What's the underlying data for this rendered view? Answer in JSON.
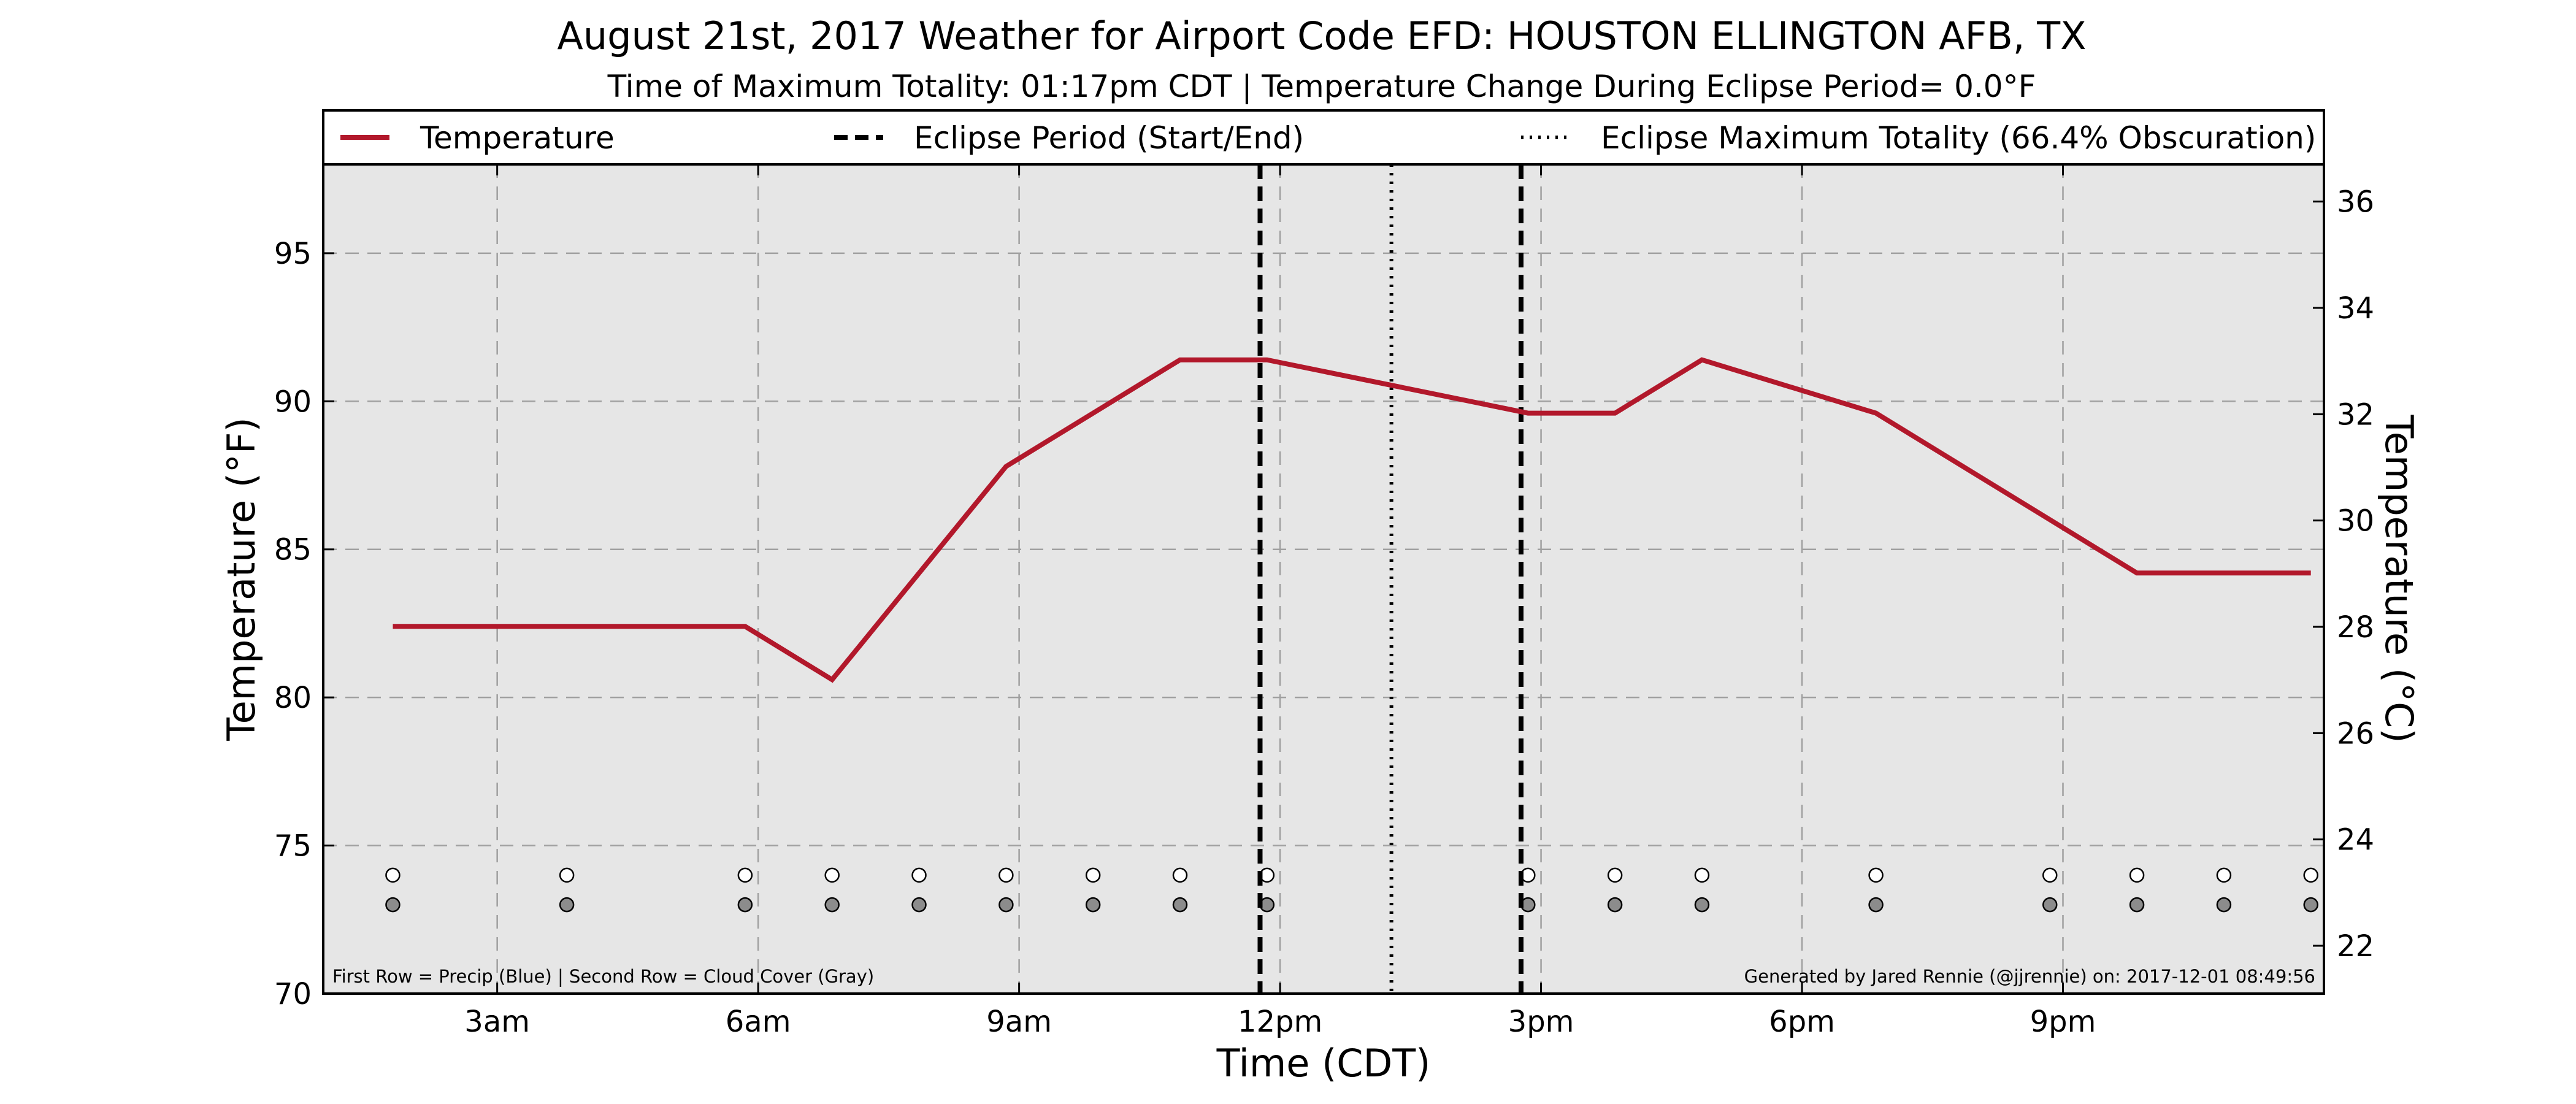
{
  "chart_data": {
    "type": "line",
    "title": "August 21st, 2017 Weather for Airport Code EFD: HOUSTON ELLINGTON AFB, TX",
    "subtitle": "Time of Maximum Totality: 01:17pm CDT | Temperature Change During Eclipse Period= 0.0°F",
    "xlabel": "Time (CDT)",
    "ylabel": "Temperature (°F)",
    "y2label": "Temperature (°C)",
    "xlim_hours": [
      1,
      24
    ],
    "ylim": [
      70,
      98
    ],
    "y2lim": [
      21.1,
      36.7
    ],
    "x_ticks": [
      {
        "hour": 3,
        "label": "3am"
      },
      {
        "hour": 6,
        "label": "6am"
      },
      {
        "hour": 9,
        "label": "9am"
      },
      {
        "hour": 12,
        "label": "12pm"
      },
      {
        "hour": 15,
        "label": "3pm"
      },
      {
        "hour": 18,
        "label": "6pm"
      },
      {
        "hour": 21,
        "label": "9pm"
      }
    ],
    "y_ticks": [
      70,
      75,
      80,
      85,
      90,
      95
    ],
    "y2_ticks": [
      22,
      24,
      26,
      28,
      30,
      32,
      34,
      36
    ],
    "grid": true,
    "legend_position": "top",
    "legend": [
      {
        "label": "Temperature",
        "style": "solid",
        "color": "#b2182b"
      },
      {
        "label": "Eclipse Period (Start/End)",
        "style": "dashed",
        "color": "#000000"
      },
      {
        "label": "Eclipse Maximum Totality (66.4% Obscuration)",
        "style": "dotted",
        "color": "#000000"
      }
    ],
    "series": [
      {
        "name": "Temperature",
        "color": "#b2182b",
        "points": [
          {
            "hour": 1.8,
            "value": 82.4
          },
          {
            "hour": 5.85,
            "value": 82.4
          },
          {
            "hour": 6.85,
            "value": 80.6
          },
          {
            "hour": 8.85,
            "value": 87.8
          },
          {
            "hour": 10.85,
            "value": 91.4
          },
          {
            "hour": 11.85,
            "value": 91.4
          },
          {
            "hour": 14.85,
            "value": 89.6
          },
          {
            "hour": 15.85,
            "value": 89.6
          },
          {
            "hour": 16.85,
            "value": 91.4
          },
          {
            "hour": 18.85,
            "value": 89.6
          },
          {
            "hour": 21.85,
            "value": 84.2
          },
          {
            "hour": 23.85,
            "value": 84.2
          }
        ]
      }
    ],
    "eclipse_start_hour": 11.77,
    "eclipse_end_hour": 14.77,
    "eclipse_max_hour": 13.28,
    "precip_row": {
      "y_value": 74,
      "color": "#ffffff",
      "hours": [
        1.8,
        3.8,
        5.85,
        6.85,
        7.85,
        8.85,
        9.85,
        10.85,
        11.85,
        14.85,
        15.85,
        16.85,
        18.85,
        20.85,
        21.85,
        22.85,
        23.85
      ]
    },
    "cloud_row": {
      "y_value": 73,
      "color": "#8c8c8c",
      "hours": [
        1.8,
        3.8,
        5.85,
        6.85,
        7.85,
        8.85,
        9.85,
        10.85,
        11.85,
        14.85,
        15.85,
        16.85,
        18.85,
        20.85,
        21.85,
        22.85,
        23.85
      ]
    },
    "note_left": "First Row = Precip (Blue) | Second Row = Cloud Cover (Gray)",
    "note_right": "Generated by Jared Rennie (@jjrennie) on: 2017-12-01 08:49:56",
    "colors": {
      "plot_background": "#e6e6e6",
      "grid": "#a0a0a0",
      "temperature": "#b2182b"
    }
  }
}
